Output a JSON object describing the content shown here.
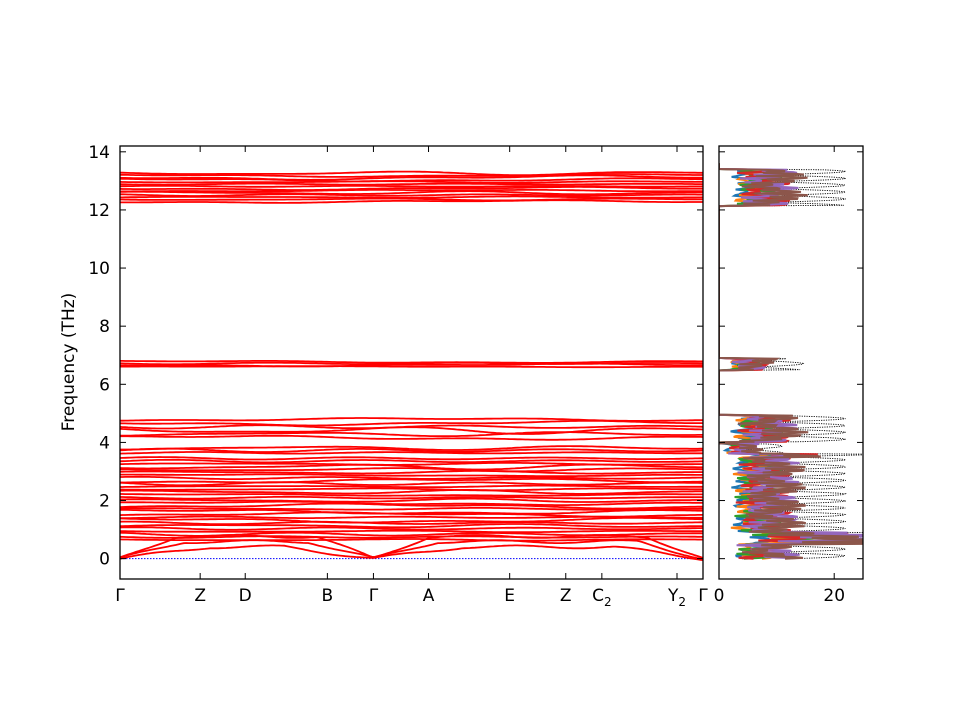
{
  "chart_data": [
    {
      "type": "line",
      "ylabel": "Frequency (THz)",
      "ylim": [
        -0.7,
        14.2
      ],
      "yticks": [
        0,
        2,
        4,
        6,
        8,
        10,
        12,
        14
      ],
      "ytick_labels": [
        "0",
        "2",
        "4",
        "6",
        "8",
        "10",
        "12",
        "14"
      ],
      "xlim": [
        0,
        1
      ],
      "path_points": [
        {
          "label": "Γ",
          "sub": "",
          "pos": 0.0
        },
        {
          "label": "Z",
          "sub": "",
          "pos": 0.1375
        },
        {
          "label": "D",
          "sub": "",
          "pos": 0.2148
        },
        {
          "label": "B",
          "sub": "",
          "pos": 0.3557
        },
        {
          "label": "Γ",
          "sub": "",
          "pos": 0.4347
        },
        {
          "label": "A",
          "sub": "",
          "pos": 0.5292
        },
        {
          "label": "E",
          "sub": "",
          "pos": 0.6684
        },
        {
          "label": "Z",
          "sub": "",
          "pos": 0.7646
        },
        {
          "label": "C",
          "sub": "2",
          "pos": 0.8265
        },
        {
          "label": "Y",
          "sub": "2",
          "pos": 0.9554
        },
        {
          "label": "Γ",
          "sub": "",
          "pos": 1.0
        }
      ],
      "band_color": "#ff0000",
      "zero_line_color": "#0000ff",
      "series": [
        {
          "kind": "bundle",
          "base": 12.25,
          "top": 13.3,
          "count": 14
        },
        {
          "kind": "bundle",
          "base": 6.58,
          "top": 6.8,
          "count": 4
        },
        {
          "kind": "bundle",
          "base": 4.1,
          "top": 4.85,
          "count": 6
        },
        {
          "kind": "bundle",
          "base": 3.6,
          "top": 3.85,
          "count": 3
        },
        {
          "kind": "bundle",
          "base": 0.6,
          "top": 3.5,
          "count": 30
        },
        {
          "kind": "acoustic",
          "count": 3,
          "max": 0.9
        }
      ]
    },
    {
      "type": "line",
      "xlim": [
        0,
        25
      ],
      "xticks": [
        0,
        20
      ],
      "xtick_labels": [
        "0",
        "20"
      ],
      "ylim": [
        -0.7,
        14.2
      ],
      "total_color": "#000000",
      "series_colors": [
        "#1f77b4",
        "#ff7f0e",
        "#2ca02c",
        "#d62728",
        "#9467bd",
        "#8c564b"
      ]
    }
  ]
}
